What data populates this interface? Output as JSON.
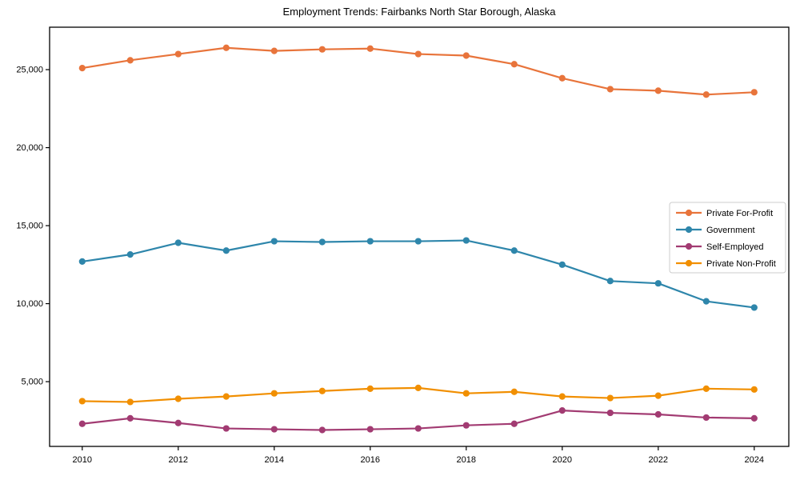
{
  "title": "Employment Trends: Fairbanks North Star Borough, Alaska",
  "chart_data": {
    "type": "line",
    "title": "Employment Trends: Fairbanks North Star Borough, Alaska",
    "xlabel": "",
    "ylabel": "",
    "grid": false,
    "legend_position": "center right",
    "marker": "circle",
    "background": "#ffffff",
    "axis_color": "#000000",
    "x": [
      2010,
      2011,
      2012,
      2013,
      2014,
      2015,
      2016,
      2017,
      2018,
      2019,
      2020,
      2021,
      2022,
      2023,
      2024
    ],
    "xlim": [
      2009.32,
      2024.72
    ],
    "ylim": [
      850,
      27720
    ],
    "xticks": [
      {
        "value": 2010,
        "label": "2010"
      },
      {
        "value": 2012,
        "label": "2012"
      },
      {
        "value": 2014,
        "label": "2014"
      },
      {
        "value": 2016,
        "label": "2016"
      },
      {
        "value": 2018,
        "label": "2018"
      },
      {
        "value": 2020,
        "label": "2020"
      },
      {
        "value": 2022,
        "label": "2022"
      },
      {
        "value": 2024,
        "label": "2024"
      }
    ],
    "yticks": [
      {
        "value": 5000,
        "label": "5,000"
      },
      {
        "value": 10000,
        "label": "10,000"
      },
      {
        "value": 15000,
        "label": "15,000"
      },
      {
        "value": 20000,
        "label": "20,000"
      },
      {
        "value": 25000,
        "label": "25,000"
      }
    ],
    "series": [
      {
        "name": "Private For-Profit",
        "color": "#E8743B",
        "values": [
          25100,
          25600,
          26000,
          26400,
          26200,
          26300,
          26350,
          26000,
          25900,
          25350,
          24450,
          23750,
          23650,
          23400,
          23550
        ]
      },
      {
        "name": "Government",
        "color": "#2E86AB",
        "values": [
          12700,
          13150,
          13900,
          13400,
          14000,
          13950,
          14000,
          14000,
          14050,
          13400,
          12500,
          11450,
          11300,
          10150,
          9750
        ]
      },
      {
        "name": "Self-Employed",
        "color": "#A23B72",
        "values": [
          2300,
          2650,
          2350,
          2000,
          1950,
          1900,
          1950,
          2000,
          2200,
          2300,
          3150,
          3000,
          2900,
          2700,
          2650
        ]
      },
      {
        "name": "Private Non-Profit",
        "color": "#F18F01",
        "values": [
          3750,
          3700,
          3900,
          4050,
          4250,
          4400,
          4550,
          4600,
          4250,
          4350,
          4050,
          3950,
          4100,
          4550,
          4500
        ]
      }
    ]
  }
}
